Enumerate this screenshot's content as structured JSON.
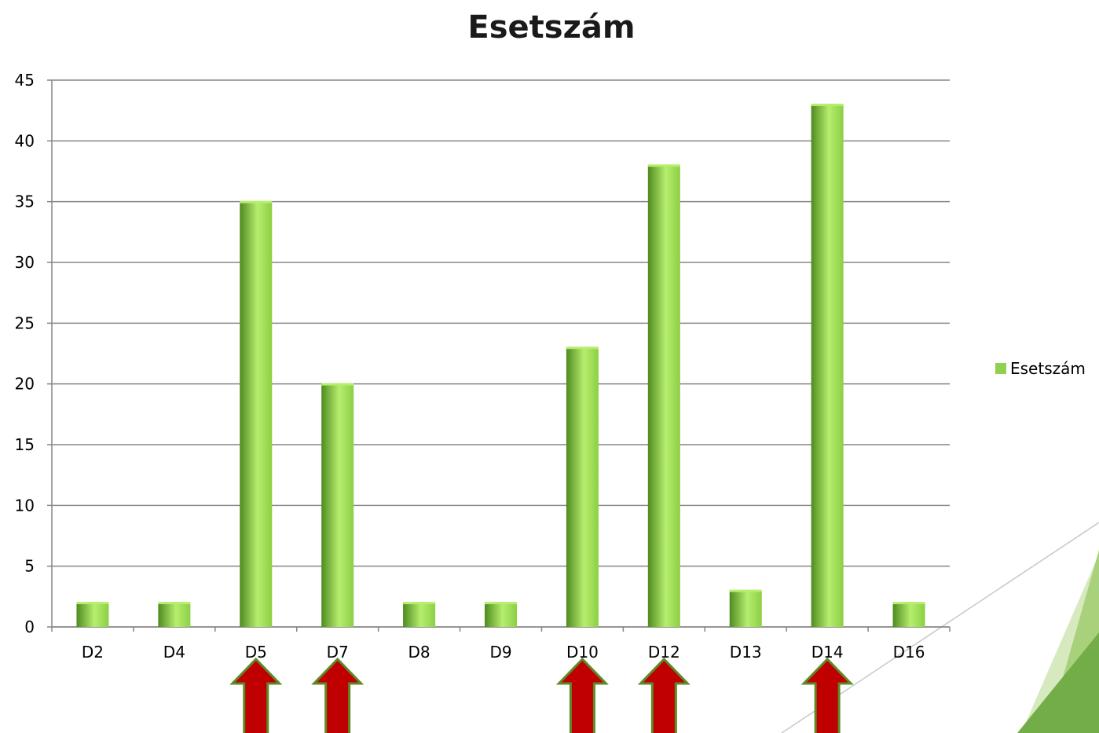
{
  "chart_data": {
    "type": "bar",
    "title": "Esetszám",
    "xlabel": "",
    "ylabel": "",
    "categories": [
      "D2",
      "D4",
      "D5",
      "D7",
      "D8",
      "D9",
      "D10",
      "D12",
      "D13",
      "D14",
      "D16"
    ],
    "series": [
      {
        "name": "Esetszám",
        "values": [
          2,
          2,
          35,
          20,
          2,
          2,
          23,
          38,
          3,
          43,
          2
        ]
      }
    ],
    "ylim": [
      0,
      45
    ],
    "yticks": [
      0,
      5,
      10,
      15,
      20,
      25,
      30,
      35,
      40,
      45
    ],
    "grid": true,
    "legend_position": "right",
    "highlighted_categories": [
      "D5",
      "D7",
      "D10",
      "D12",
      "D14"
    ]
  },
  "colors": {
    "bar_light": "#b6ee6e",
    "bar_mid": "#8ccf45",
    "bar_dark": "#4f8a1f",
    "arrow_fill": "#c00000",
    "arrow_stroke": "#5e8a26",
    "grid": "#868686",
    "legend_swatch": "#92d050",
    "deco_light": "#d7e9bf",
    "deco_mid": "#a9d07a",
    "deco_dark": "#72ad48"
  },
  "decorations": {
    "arrow_icon": "up-arrow-icon"
  }
}
